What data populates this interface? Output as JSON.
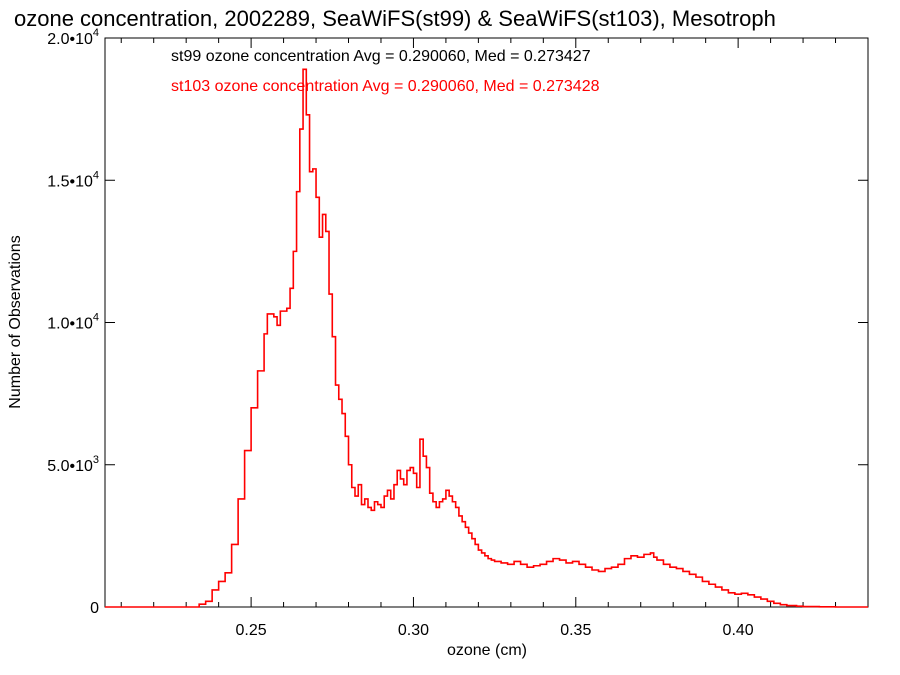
{
  "chart_data": {
    "type": "line",
    "title": "ozone concentration, 2002289, SeaWiFS(st99) & SeaWiFS(st103), Mesotroph",
    "xlabel": "ozone (cm)",
    "ylabel": "Number of Observations",
    "xlim": [
      0.205,
      0.44
    ],
    "ylim": [
      0,
      20000
    ],
    "x_ticks": [
      {
        "value": 0.25,
        "label": "0.25"
      },
      {
        "value": 0.3,
        "label": "0.30"
      },
      {
        "value": 0.35,
        "label": "0.35"
      },
      {
        "value": 0.4,
        "label": "0.40"
      }
    ],
    "y_ticks": [
      {
        "value": 0,
        "mant": "0",
        "exp": ""
      },
      {
        "value": 5000,
        "mant": "5.0•10",
        "exp": "3"
      },
      {
        "value": 10000,
        "mant": "1.0•10",
        "exp": "4"
      },
      {
        "value": 15000,
        "mant": "1.5•10",
        "exp": "4"
      },
      {
        "value": 20000,
        "mant": "2.0•10",
        "exp": "4"
      }
    ],
    "annotations": [
      {
        "text": "st99 ozone concentration Avg = 0.290060, Med = 0.273427",
        "color": "#000000"
      },
      {
        "text": "st103 ozone concentration Avg = 0.290060, Med = 0.273428",
        "color": "#ff0000"
      }
    ],
    "series": [
      {
        "color": "#ff0000",
        "style": "step",
        "points": [
          [
            0.205,
            0
          ],
          [
            0.23,
            0
          ],
          [
            0.234,
            100
          ],
          [
            0.236,
            200
          ],
          [
            0.238,
            600
          ],
          [
            0.24,
            900
          ],
          [
            0.242,
            1200
          ],
          [
            0.244,
            2200
          ],
          [
            0.246,
            3800
          ],
          [
            0.248,
            5500
          ],
          [
            0.25,
            7000
          ],
          [
            0.252,
            8300
          ],
          [
            0.254,
            9600
          ],
          [
            0.255,
            10300
          ],
          [
            0.257,
            10200
          ],
          [
            0.258,
            9900
          ],
          [
            0.259,
            10400
          ],
          [
            0.261,
            10500
          ],
          [
            0.262,
            11200
          ],
          [
            0.263,
            12500
          ],
          [
            0.264,
            14600
          ],
          [
            0.265,
            16800
          ],
          [
            0.266,
            18900
          ],
          [
            0.267,
            17300
          ],
          [
            0.268,
            15300
          ],
          [
            0.269,
            15400
          ],
          [
            0.27,
            14400
          ],
          [
            0.271,
            13000
          ],
          [
            0.272,
            13800
          ],
          [
            0.273,
            13200
          ],
          [
            0.274,
            11000
          ],
          [
            0.275,
            9500
          ],
          [
            0.276,
            7800
          ],
          [
            0.277,
            7300
          ],
          [
            0.278,
            6800
          ],
          [
            0.279,
            6000
          ],
          [
            0.28,
            5000
          ],
          [
            0.281,
            4200
          ],
          [
            0.282,
            3900
          ],
          [
            0.283,
            4300
          ],
          [
            0.284,
            3600
          ],
          [
            0.285,
            3800
          ],
          [
            0.286,
            3500
          ],
          [
            0.287,
            3400
          ],
          [
            0.288,
            3700
          ],
          [
            0.289,
            3600
          ],
          [
            0.29,
            3500
          ],
          [
            0.291,
            3900
          ],
          [
            0.292,
            4100
          ],
          [
            0.293,
            3800
          ],
          [
            0.294,
            4300
          ],
          [
            0.295,
            4800
          ],
          [
            0.296,
            4500
          ],
          [
            0.297,
            4300
          ],
          [
            0.298,
            4800
          ],
          [
            0.299,
            4900
          ],
          [
            0.3,
            4700
          ],
          [
            0.301,
            4200
          ],
          [
            0.302,
            5900
          ],
          [
            0.303,
            5300
          ],
          [
            0.304,
            4900
          ],
          [
            0.305,
            4000
          ],
          [
            0.306,
            3700
          ],
          [
            0.307,
            3500
          ],
          [
            0.308,
            3700
          ],
          [
            0.309,
            3800
          ],
          [
            0.31,
            4100
          ],
          [
            0.311,
            3900
          ],
          [
            0.312,
            3700
          ],
          [
            0.313,
            3500
          ],
          [
            0.314,
            3200
          ],
          [
            0.315,
            3000
          ],
          [
            0.316,
            2800
          ],
          [
            0.317,
            2600
          ],
          [
            0.318,
            2400
          ],
          [
            0.319,
            2200
          ],
          [
            0.32,
            2000
          ],
          [
            0.321,
            1900
          ],
          [
            0.322,
            1800
          ],
          [
            0.323,
            1700
          ],
          [
            0.324,
            1650
          ],
          [
            0.325,
            1600
          ],
          [
            0.327,
            1550
          ],
          [
            0.329,
            1500
          ],
          [
            0.331,
            1600
          ],
          [
            0.333,
            1500
          ],
          [
            0.335,
            1400
          ],
          [
            0.337,
            1450
          ],
          [
            0.339,
            1500
          ],
          [
            0.341,
            1600
          ],
          [
            0.343,
            1700
          ],
          [
            0.345,
            1650
          ],
          [
            0.347,
            1550
          ],
          [
            0.349,
            1600
          ],
          [
            0.351,
            1500
          ],
          [
            0.353,
            1400
          ],
          [
            0.355,
            1300
          ],
          [
            0.357,
            1250
          ],
          [
            0.359,
            1350
          ],
          [
            0.361,
            1400
          ],
          [
            0.363,
            1500
          ],
          [
            0.365,
            1700
          ],
          [
            0.367,
            1800
          ],
          [
            0.369,
            1750
          ],
          [
            0.371,
            1850
          ],
          [
            0.373,
            1900
          ],
          [
            0.374,
            1750
          ],
          [
            0.375,
            1650
          ],
          [
            0.377,
            1500
          ],
          [
            0.379,
            1400
          ],
          [
            0.381,
            1350
          ],
          [
            0.383,
            1250
          ],
          [
            0.385,
            1150
          ],
          [
            0.387,
            1050
          ],
          [
            0.389,
            900
          ],
          [
            0.391,
            800
          ],
          [
            0.393,
            700
          ],
          [
            0.395,
            600
          ],
          [
            0.397,
            500
          ],
          [
            0.399,
            450
          ],
          [
            0.401,
            480
          ],
          [
            0.403,
            430
          ],
          [
            0.405,
            350
          ],
          [
            0.407,
            280
          ],
          [
            0.409,
            200
          ],
          [
            0.411,
            130
          ],
          [
            0.413,
            80
          ],
          [
            0.415,
            50
          ],
          [
            0.418,
            30
          ],
          [
            0.42,
            15
          ],
          [
            0.425,
            5
          ],
          [
            0.43,
            0
          ],
          [
            0.44,
            0
          ]
        ]
      }
    ]
  }
}
